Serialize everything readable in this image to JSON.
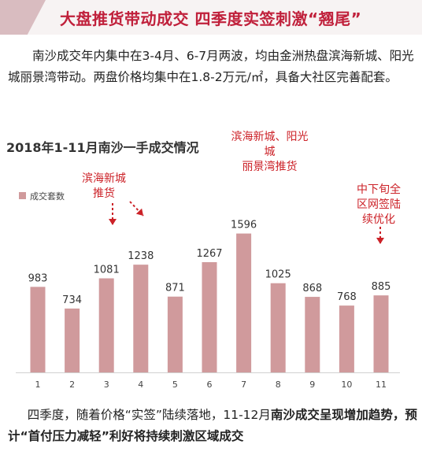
{
  "header": {
    "title": "大盘推货带动成交  四季度实签刺激“翘尾”"
  },
  "intro_text": "南沙成交年内集中在3-4月、6-7月两波，均由金洲热盘滨海新城、阳光城丽景湾带动。两盘价格均集中在1.8-2万元/㎡，具备大社区完善配套。",
  "chart_data": {
    "type": "bar",
    "title": "2018年1-11月南沙一手成交情况",
    "categories": [
      "1",
      "2",
      "3",
      "4",
      "5",
      "6",
      "7",
      "8",
      "9",
      "10",
      "11"
    ],
    "series": [
      {
        "name": "成交套数",
        "values": [
          983,
          734,
          1081,
          1238,
          871,
          1267,
          1596,
          1025,
          868,
          768,
          885
        ]
      }
    ],
    "ylim": [
      0,
      1900
    ],
    "grid": false,
    "legend_position": "top-left",
    "bar_color": "#d09a9c",
    "annotations": [
      {
        "text": "滨海新城推货",
        "lines": [
          "滨海新城",
          "推货"
        ]
      },
      {
        "text": "滨海新城、阳光城丽景湾推货",
        "lines": [
          "滨海新城、阳光城",
          "丽景湾推货"
        ]
      },
      {
        "text": "中下旬全区网签陆续优化",
        "lines": [
          "中下旬全",
          "区网签陆",
          "续优化"
        ]
      }
    ]
  },
  "outro": {
    "part1": "四季度，随着价格“实签”陆续落地，11-12月",
    "part2": "南沙成交呈现增加趋势，预计“首付压力减轻”利好将持续刺激区域成交"
  },
  "colors": {
    "accent": "#c0203b",
    "annotation": "#cc2228",
    "bar": "#d09a9c"
  }
}
